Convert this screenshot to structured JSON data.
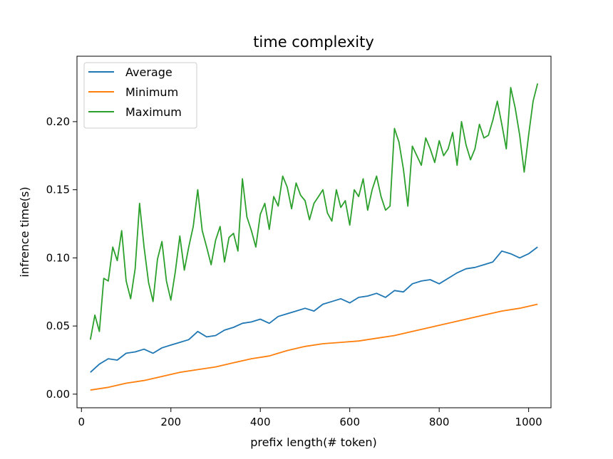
{
  "chart_data": {
    "type": "line",
    "title": "time complexity",
    "xlabel": "prefix length(# token)",
    "ylabel": "infrence time(s)",
    "xlim": [
      -10,
      1050
    ],
    "ylim": [
      -0.01,
      0.248
    ],
    "xticks": [
      0,
      200,
      400,
      600,
      800,
      1000
    ],
    "yticks": [
      0.0,
      0.05,
      0.1,
      0.15,
      0.2
    ],
    "xtick_labels": [
      "0",
      "200",
      "400",
      "600",
      "800",
      "1000"
    ],
    "ytick_labels": [
      "0.00",
      "0.05",
      "0.10",
      "0.15",
      "0.20"
    ],
    "legend_position": "upper-left",
    "series": [
      {
        "name": "Average",
        "color": "#1f77b4",
        "x": [
          20,
          40,
          60,
          80,
          100,
          120,
          140,
          160,
          180,
          200,
          220,
          240,
          260,
          280,
          300,
          320,
          340,
          360,
          380,
          400,
          420,
          440,
          460,
          480,
          500,
          520,
          540,
          560,
          580,
          600,
          620,
          640,
          660,
          680,
          700,
          720,
          740,
          760,
          780,
          800,
          820,
          840,
          860,
          880,
          900,
          920,
          940,
          960,
          980,
          1000,
          1020
        ],
        "values": [
          0.016,
          0.022,
          0.026,
          0.025,
          0.03,
          0.031,
          0.033,
          0.03,
          0.034,
          0.036,
          0.038,
          0.04,
          0.046,
          0.042,
          0.043,
          0.047,
          0.049,
          0.052,
          0.053,
          0.055,
          0.052,
          0.057,
          0.059,
          0.061,
          0.063,
          0.061,
          0.066,
          0.068,
          0.07,
          0.067,
          0.071,
          0.072,
          0.074,
          0.071,
          0.076,
          0.075,
          0.081,
          0.083,
          0.084,
          0.081,
          0.085,
          0.089,
          0.092,
          0.093,
          0.095,
          0.097,
          0.105,
          0.103,
          0.1,
          0.103,
          0.108
        ]
      },
      {
        "name": "Minimum",
        "color": "#ff7f0e",
        "x": [
          20,
          60,
          100,
          140,
          180,
          220,
          260,
          300,
          340,
          380,
          420,
          460,
          500,
          540,
          580,
          620,
          660,
          700,
          740,
          780,
          820,
          860,
          900,
          940,
          980,
          1020
        ],
        "values": [
          0.003,
          0.005,
          0.008,
          0.01,
          0.013,
          0.016,
          0.018,
          0.02,
          0.023,
          0.026,
          0.028,
          0.032,
          0.035,
          0.037,
          0.038,
          0.039,
          0.041,
          0.043,
          0.046,
          0.049,
          0.052,
          0.055,
          0.058,
          0.061,
          0.063,
          0.066
        ]
      },
      {
        "name": "Maximum",
        "color": "#2ca02c",
        "x": [
          20,
          30,
          40,
          50,
          60,
          70,
          80,
          90,
          100,
          110,
          120,
          130,
          140,
          150,
          160,
          170,
          180,
          190,
          200,
          210,
          220,
          230,
          240,
          250,
          260,
          270,
          280,
          290,
          300,
          310,
          320,
          330,
          340,
          350,
          360,
          370,
          380,
          390,
          400,
          410,
          420,
          430,
          440,
          450,
          460,
          470,
          480,
          490,
          500,
          510,
          520,
          530,
          540,
          550,
          560,
          570,
          580,
          590,
          600,
          610,
          620,
          630,
          640,
          650,
          660,
          670,
          680,
          690,
          700,
          710,
          720,
          730,
          740,
          750,
          760,
          770,
          780,
          790,
          800,
          810,
          820,
          830,
          840,
          850,
          860,
          870,
          880,
          890,
          900,
          910,
          920,
          930,
          940,
          950,
          960,
          970,
          980,
          990,
          1000,
          1010,
          1020
        ],
        "values": [
          0.04,
          0.058,
          0.046,
          0.085,
          0.083,
          0.108,
          0.098,
          0.12,
          0.083,
          0.07,
          0.092,
          0.14,
          0.108,
          0.082,
          0.068,
          0.099,
          0.112,
          0.083,
          0.069,
          0.09,
          0.116,
          0.091,
          0.108,
          0.123,
          0.15,
          0.12,
          0.108,
          0.095,
          0.113,
          0.123,
          0.097,
          0.115,
          0.118,
          0.105,
          0.158,
          0.13,
          0.12,
          0.108,
          0.132,
          0.14,
          0.121,
          0.145,
          0.138,
          0.16,
          0.152,
          0.136,
          0.155,
          0.146,
          0.142,
          0.128,
          0.14,
          0.145,
          0.15,
          0.133,
          0.127,
          0.15,
          0.137,
          0.142,
          0.124,
          0.15,
          0.145,
          0.158,
          0.135,
          0.15,
          0.16,
          0.145,
          0.135,
          0.138,
          0.195,
          0.185,
          0.165,
          0.138,
          0.182,
          0.175,
          0.168,
          0.188,
          0.18,
          0.17,
          0.186,
          0.175,
          0.18,
          0.192,
          0.168,
          0.2,
          0.183,
          0.172,
          0.18,
          0.198,
          0.188,
          0.19,
          0.201,
          0.215,
          0.198,
          0.18,
          0.225,
          0.21,
          0.19,
          0.163,
          0.19,
          0.215,
          0.228
        ]
      }
    ]
  }
}
